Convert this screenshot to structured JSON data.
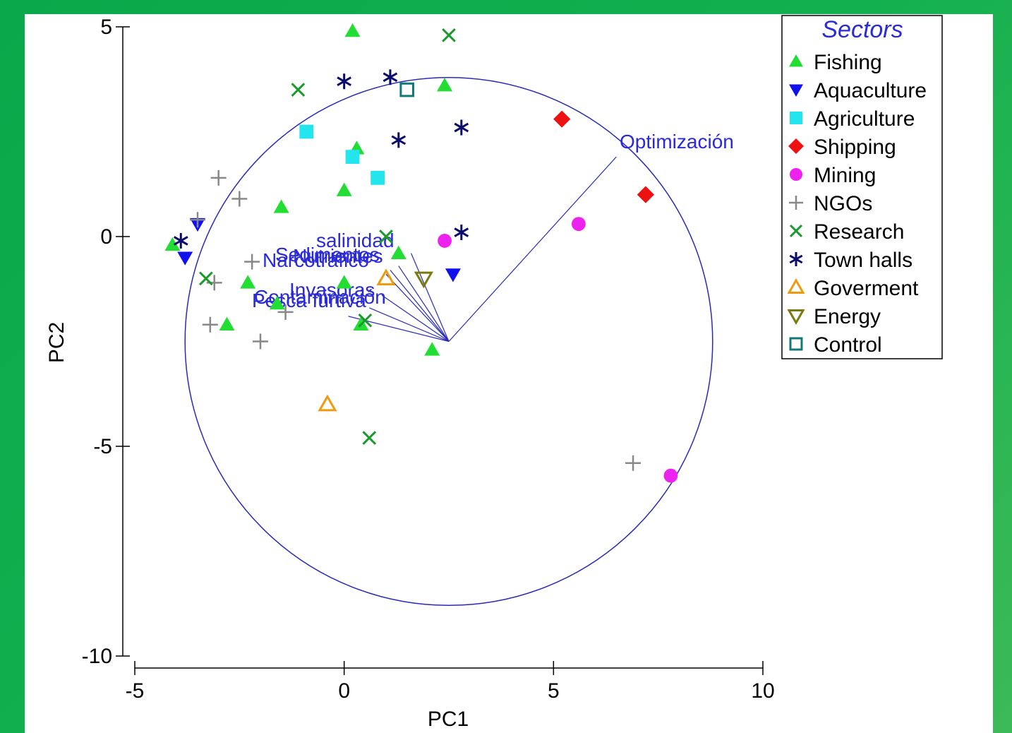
{
  "chart_data": {
    "type": "scatter",
    "xlabel": "PC1",
    "ylabel": "PC2",
    "xlim": [
      -5,
      10
    ],
    "ylim": [
      -10,
      5
    ],
    "xticks": [
      "-5",
      "0",
      "5",
      "10"
    ],
    "yticks": [
      "5",
      "0",
      "-5",
      "-10"
    ],
    "legend_title": "Sectors",
    "legend_position": "top-right",
    "circle": {
      "center": [
        2.5,
        -2.5
      ],
      "radius": 6.3
    },
    "vector_origin": [
      2.5,
      -2.5
    ],
    "vectors": [
      {
        "label": "Optimización",
        "end": [
          6.5,
          1.9
        ]
      },
      {
        "label": "salinidad",
        "end": [
          1.6,
          -0.4
        ]
      },
      {
        "label": "Sedimentos",
        "end": [
          1.3,
          -0.7
        ]
      },
      {
        "label": "Nutrientes",
        "end": [
          1.1,
          -0.8
        ]
      },
      {
        "label": "Narcotráfico",
        "end": [
          1.0,
          -0.9
        ]
      },
      {
        "label": "Invasoras",
        "end": [
          0.9,
          -1.4
        ]
      },
      {
        "label": "Pesca furtiva",
        "end": [
          0.6,
          -1.7
        ]
      },
      {
        "label": "Contaminación",
        "end": [
          0.1,
          -1.9
        ]
      }
    ],
    "series": [
      {
        "name": "Fishing",
        "marker": "triangle-up",
        "color": "#22dd33",
        "points": [
          [
            0.2,
            4.9
          ],
          [
            2.4,
            3.6
          ],
          [
            0.3,
            2.1
          ],
          [
            0.0,
            1.1
          ],
          [
            -1.5,
            0.7
          ],
          [
            -4.1,
            -0.2
          ],
          [
            -2.3,
            -1.1
          ],
          [
            0.0,
            -1.1
          ],
          [
            -1.6,
            -1.6
          ],
          [
            -2.8,
            -2.1
          ],
          [
            0.4,
            -2.1
          ],
          [
            2.1,
            -2.7
          ],
          [
            1.3,
            -0.4
          ]
        ]
      },
      {
        "name": "Aquaculture",
        "marker": "triangle-down",
        "color": "#1111ee",
        "points": [
          [
            -3.8,
            -0.5
          ],
          [
            -3.5,
            0.3
          ],
          [
            2.6,
            -0.9
          ]
        ]
      },
      {
        "name": "Agriculture",
        "marker": "square",
        "color": "#22e5ee",
        "points": [
          [
            -0.9,
            2.5
          ],
          [
            0.2,
            1.9
          ],
          [
            0.8,
            1.4
          ]
        ]
      },
      {
        "name": "Shipping",
        "marker": "diamond",
        "color": "#ee1111",
        "points": [
          [
            5.2,
            2.8
          ],
          [
            7.2,
            1.0
          ]
        ]
      },
      {
        "name": "Mining",
        "marker": "circle",
        "color": "#ee22ee",
        "points": [
          [
            5.6,
            0.3
          ],
          [
            2.4,
            -0.1
          ],
          [
            7.8,
            -5.7
          ]
        ]
      },
      {
        "name": "NGOs",
        "marker": "plus",
        "color": "#888888",
        "points": [
          [
            -3.0,
            1.4
          ],
          [
            -2.5,
            0.9
          ],
          [
            -3.5,
            0.4
          ],
          [
            -2.2,
            -0.6
          ],
          [
            -3.1,
            -1.1
          ],
          [
            -1.4,
            -1.8
          ],
          [
            -3.2,
            -2.1
          ],
          [
            -2.0,
            -2.5
          ],
          [
            6.9,
            -5.4
          ]
        ]
      },
      {
        "name": "Research",
        "marker": "x",
        "color": "#1a9a2a",
        "points": [
          [
            2.5,
            4.8
          ],
          [
            -1.1,
            3.5
          ],
          [
            1.0,
            0.0
          ],
          [
            -3.3,
            -1.0
          ],
          [
            0.5,
            -2.0
          ],
          [
            0.6,
            -4.8
          ]
        ]
      },
      {
        "name": "Town halls",
        "marker": "asterisk",
        "color": "#0a0a6a",
        "points": [
          [
            0.0,
            3.7
          ],
          [
            1.1,
            3.8
          ],
          [
            2.8,
            2.6
          ],
          [
            1.3,
            2.3
          ],
          [
            -3.9,
            -0.1
          ],
          [
            2.8,
            0.1
          ]
        ]
      },
      {
        "name": "Goverment",
        "marker": "triangle-up-open",
        "color": "#ee9a11",
        "points": [
          [
            1.0,
            -1.0
          ],
          [
            -0.4,
            -4.0
          ]
        ]
      },
      {
        "name": "Energy",
        "marker": "triangle-down-open",
        "color": "#7a7a10",
        "points": [
          [
            1.9,
            -1.0
          ]
        ]
      },
      {
        "name": "Control",
        "marker": "square-open",
        "color": "#107a7a",
        "points": [
          [
            1.5,
            3.5
          ]
        ]
      }
    ]
  }
}
